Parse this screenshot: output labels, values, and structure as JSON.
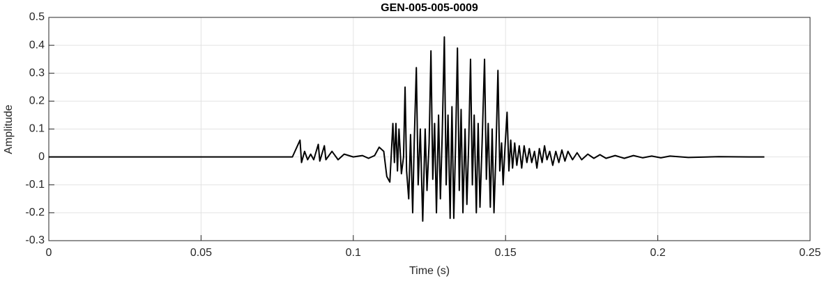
{
  "chart_data": {
    "type": "line",
    "title": "GEN-005-005-0009",
    "xlabel": "Time (s)",
    "ylabel": "Amplitude",
    "color": "#000000",
    "grid": true,
    "xlim": [
      0,
      0.25
    ],
    "ylim": [
      -0.3,
      0.5
    ],
    "xticks": [
      0,
      0.05,
      0.1,
      0.15,
      0.2,
      0.25
    ],
    "yticks": [
      -0.3,
      -0.2,
      -0.1,
      0,
      0.1,
      0.2,
      0.3,
      0.4,
      0.5
    ],
    "x": [
      0,
      0.02,
      0.04,
      0.06,
      0.08,
      0.0825,
      0.083,
      0.084,
      0.085,
      0.086,
      0.087,
      0.0885,
      0.089,
      0.0905,
      0.091,
      0.093,
      0.095,
      0.097,
      0.1,
      0.103,
      0.105,
      0.107,
      0.1085,
      0.11,
      0.111,
      0.112,
      0.113,
      0.1135,
      0.114,
      0.1145,
      0.115,
      0.1158,
      0.1165,
      0.117,
      0.1175,
      0.1182,
      0.1188,
      0.1195,
      0.12,
      0.1207,
      0.1213,
      0.122,
      0.1228,
      0.1236,
      0.1242,
      0.1249,
      0.1255,
      0.1261,
      0.1267,
      0.1273,
      0.128,
      0.1286,
      0.1292,
      0.1299,
      0.1305,
      0.1311,
      0.1318,
      0.1324,
      0.133,
      0.1336,
      0.1342,
      0.1348,
      0.1354,
      0.136,
      0.1367,
      0.1373,
      0.1379,
      0.1385,
      0.1391,
      0.1397,
      0.1404,
      0.141,
      0.1416,
      0.1423,
      0.1431,
      0.1437,
      0.1443,
      0.145,
      0.1456,
      0.1462,
      0.1468,
      0.1475,
      0.1481,
      0.1487,
      0.1492,
      0.1498,
      0.1505,
      0.1511,
      0.1517,
      0.1523,
      0.153,
      0.1537,
      0.1545,
      0.1553,
      0.1561,
      0.157,
      0.1578,
      0.1586,
      0.1595,
      0.1603,
      0.1611,
      0.162,
      0.1628,
      0.1636,
      0.1645,
      0.1655,
      0.1665,
      0.1675,
      0.1685,
      0.1695,
      0.1705,
      0.172,
      0.1735,
      0.175,
      0.177,
      0.179,
      0.181,
      0.183,
      0.186,
      0.189,
      0.192,
      0.195,
      0.198,
      0.201,
      0.204,
      0.21,
      0.22,
      0.23,
      0.235
    ],
    "values": [
      0,
      0,
      0,
      0,
      0,
      0.06,
      -0.02,
      0.02,
      -0.01,
      0.01,
      -0.01,
      0.045,
      -0.015,
      0.04,
      -0.01,
      0.02,
      -0.01,
      0.01,
      0,
      0.005,
      -0.005,
      0.005,
      0.035,
      0.02,
      -0.07,
      -0.09,
      0.12,
      -0.02,
      0.12,
      -0.05,
      0.1,
      -0.06,
      0,
      0.25,
      -0.05,
      -0.15,
      0.08,
      -0.2,
      0.05,
      0.32,
      -0.1,
      0.1,
      -0.23,
      0.1,
      -0.12,
      0.05,
      0.38,
      -0.08,
      0.12,
      -0.2,
      0.15,
      -0.15,
      0.08,
      0.43,
      -0.1,
      0.15,
      -0.22,
      0.18,
      -0.22,
      0.05,
      0.39,
      -0.12,
      0.17,
      -0.2,
      0.1,
      -0.17,
      0.05,
      0.35,
      -0.1,
      0.15,
      -0.2,
      0.12,
      -0.18,
      0.05,
      0.35,
      -0.08,
      0.12,
      -0.18,
      0.1,
      -0.2,
      0,
      0.31,
      -0.05,
      0.05,
      -0.1,
      0.03,
      0.16,
      -0.05,
      0.06,
      -0.04,
      0.05,
      -0.03,
      0.04,
      -0.04,
      0.04,
      -0.02,
      0.03,
      -0.02,
      0.02,
      -0.04,
      0.03,
      -0.02,
      0.04,
      -0.01,
      0.02,
      -0.03,
      0.02,
      -0.02,
      0.025,
      -0.015,
      0.02,
      -0.01,
      0.015,
      -0.01,
      0.01,
      -0.005,
      0.008,
      -0.005,
      0.005,
      -0.005,
      0.005,
      -0.003,
      0.003,
      -0.003,
      0.003,
      -0.002,
      0.001,
      0,
      0
    ]
  }
}
